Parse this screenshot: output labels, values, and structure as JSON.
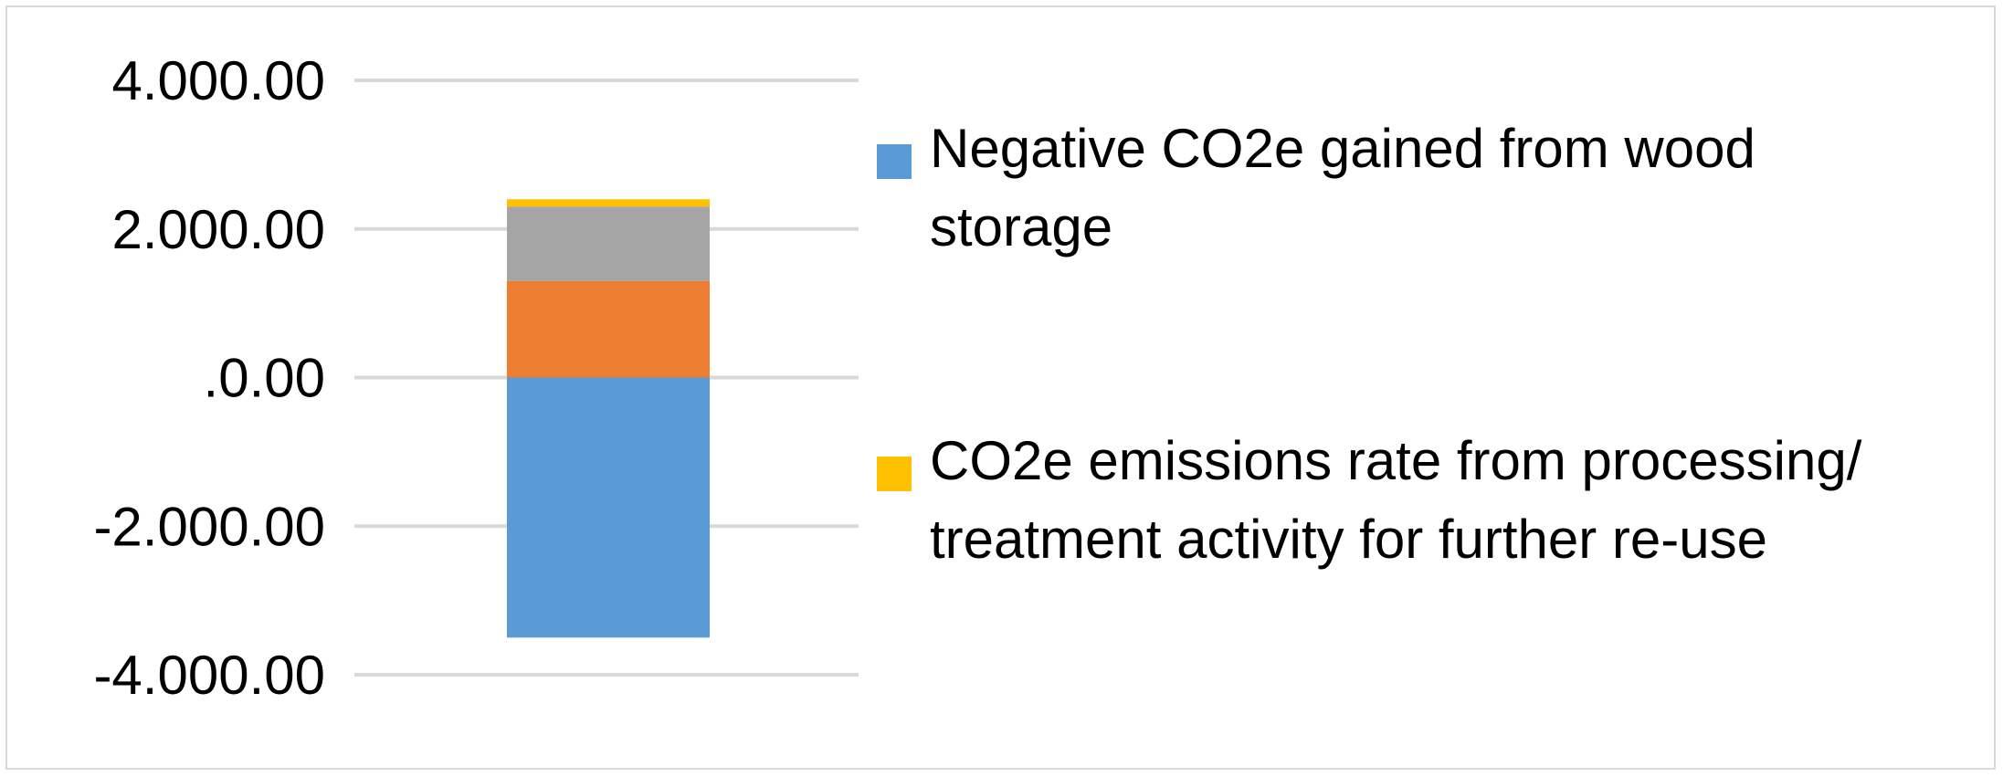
{
  "chart_data": {
    "type": "bar",
    "stacked": true,
    "categories": [
      ""
    ],
    "ylim": [
      -4000,
      4000
    ],
    "yticks": [
      4000,
      2000,
      0,
      -2000,
      -4000
    ],
    "ytick_labels": [
      "4.000.00",
      "2.000.00",
      ".0.00",
      "-2.000.00",
      "-4.000.00"
    ],
    "grid": true,
    "legend_position": "right",
    "series": [
      {
        "name": "Negative CO2e gained from wood storage",
        "color": "#5b9bd5",
        "values": [
          -3500
        ]
      },
      {
        "name": "",
        "color": "#ed7d31",
        "values": [
          1300
        ]
      },
      {
        "name": "",
        "color": "#a5a5a5",
        "values": [
          1000
        ]
      },
      {
        "name": "CO2e emissions rate from processing/ treatment activity for further re-use",
        "color": "#ffc000",
        "values": [
          100
        ]
      }
    ]
  },
  "colors": {
    "gridline": "#d9d9d9",
    "frame": "#d9d9d9"
  }
}
